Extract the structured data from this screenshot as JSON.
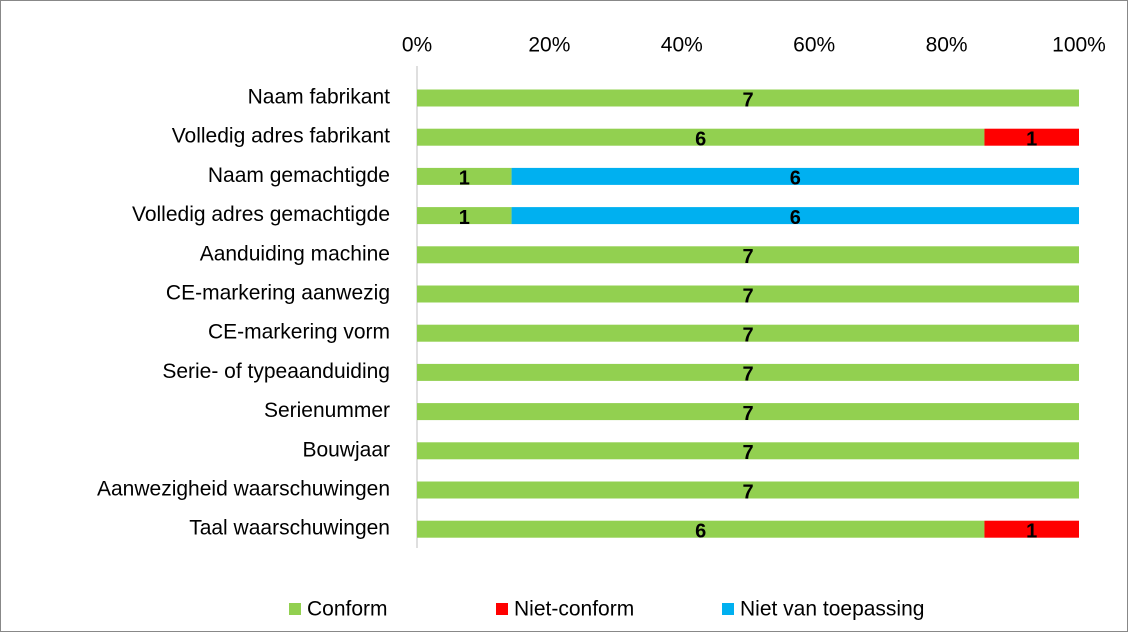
{
  "chart_data": {
    "type": "bar",
    "orientation": "horizontal",
    "stacking": "percent",
    "categories": [
      "Naam fabrikant",
      "Volledig adres fabrikant",
      "Naam gemachtigde",
      "Volledig adres gemachtigde",
      "Aanduiding machine",
      "CE-markering aanwezig",
      "CE-markering vorm",
      "Serie- of typeaanduiding",
      "Serienummer",
      "Bouwjaar",
      "Aanwezigheid waarschuwingen",
      "Taal waarschuwingen"
    ],
    "series": [
      {
        "name": "Conform",
        "color": "#92d050",
        "values": [
          7,
          6,
          1,
          1,
          7,
          7,
          7,
          7,
          7,
          7,
          7,
          6
        ]
      },
      {
        "name": "Niet-conform",
        "color": "#ff0000",
        "values": [
          0,
          1,
          0,
          0,
          0,
          0,
          0,
          0,
          0,
          0,
          0,
          1
        ]
      },
      {
        "name": "Niet van toepassing",
        "color": "#00b0f0",
        "values": [
          0,
          0,
          6,
          6,
          0,
          0,
          0,
          0,
          0,
          0,
          0,
          0
        ]
      }
    ],
    "xlim": [
      0,
      100
    ],
    "xticks": [
      {
        "value": 0,
        "label": "0%"
      },
      {
        "value": 20,
        "label": "20%"
      },
      {
        "value": 40,
        "label": "40%"
      },
      {
        "value": 60,
        "label": "60%"
      },
      {
        "value": 80,
        "label": "80%"
      },
      {
        "value": 100,
        "label": "100%"
      }
    ],
    "legend": "bottom"
  }
}
